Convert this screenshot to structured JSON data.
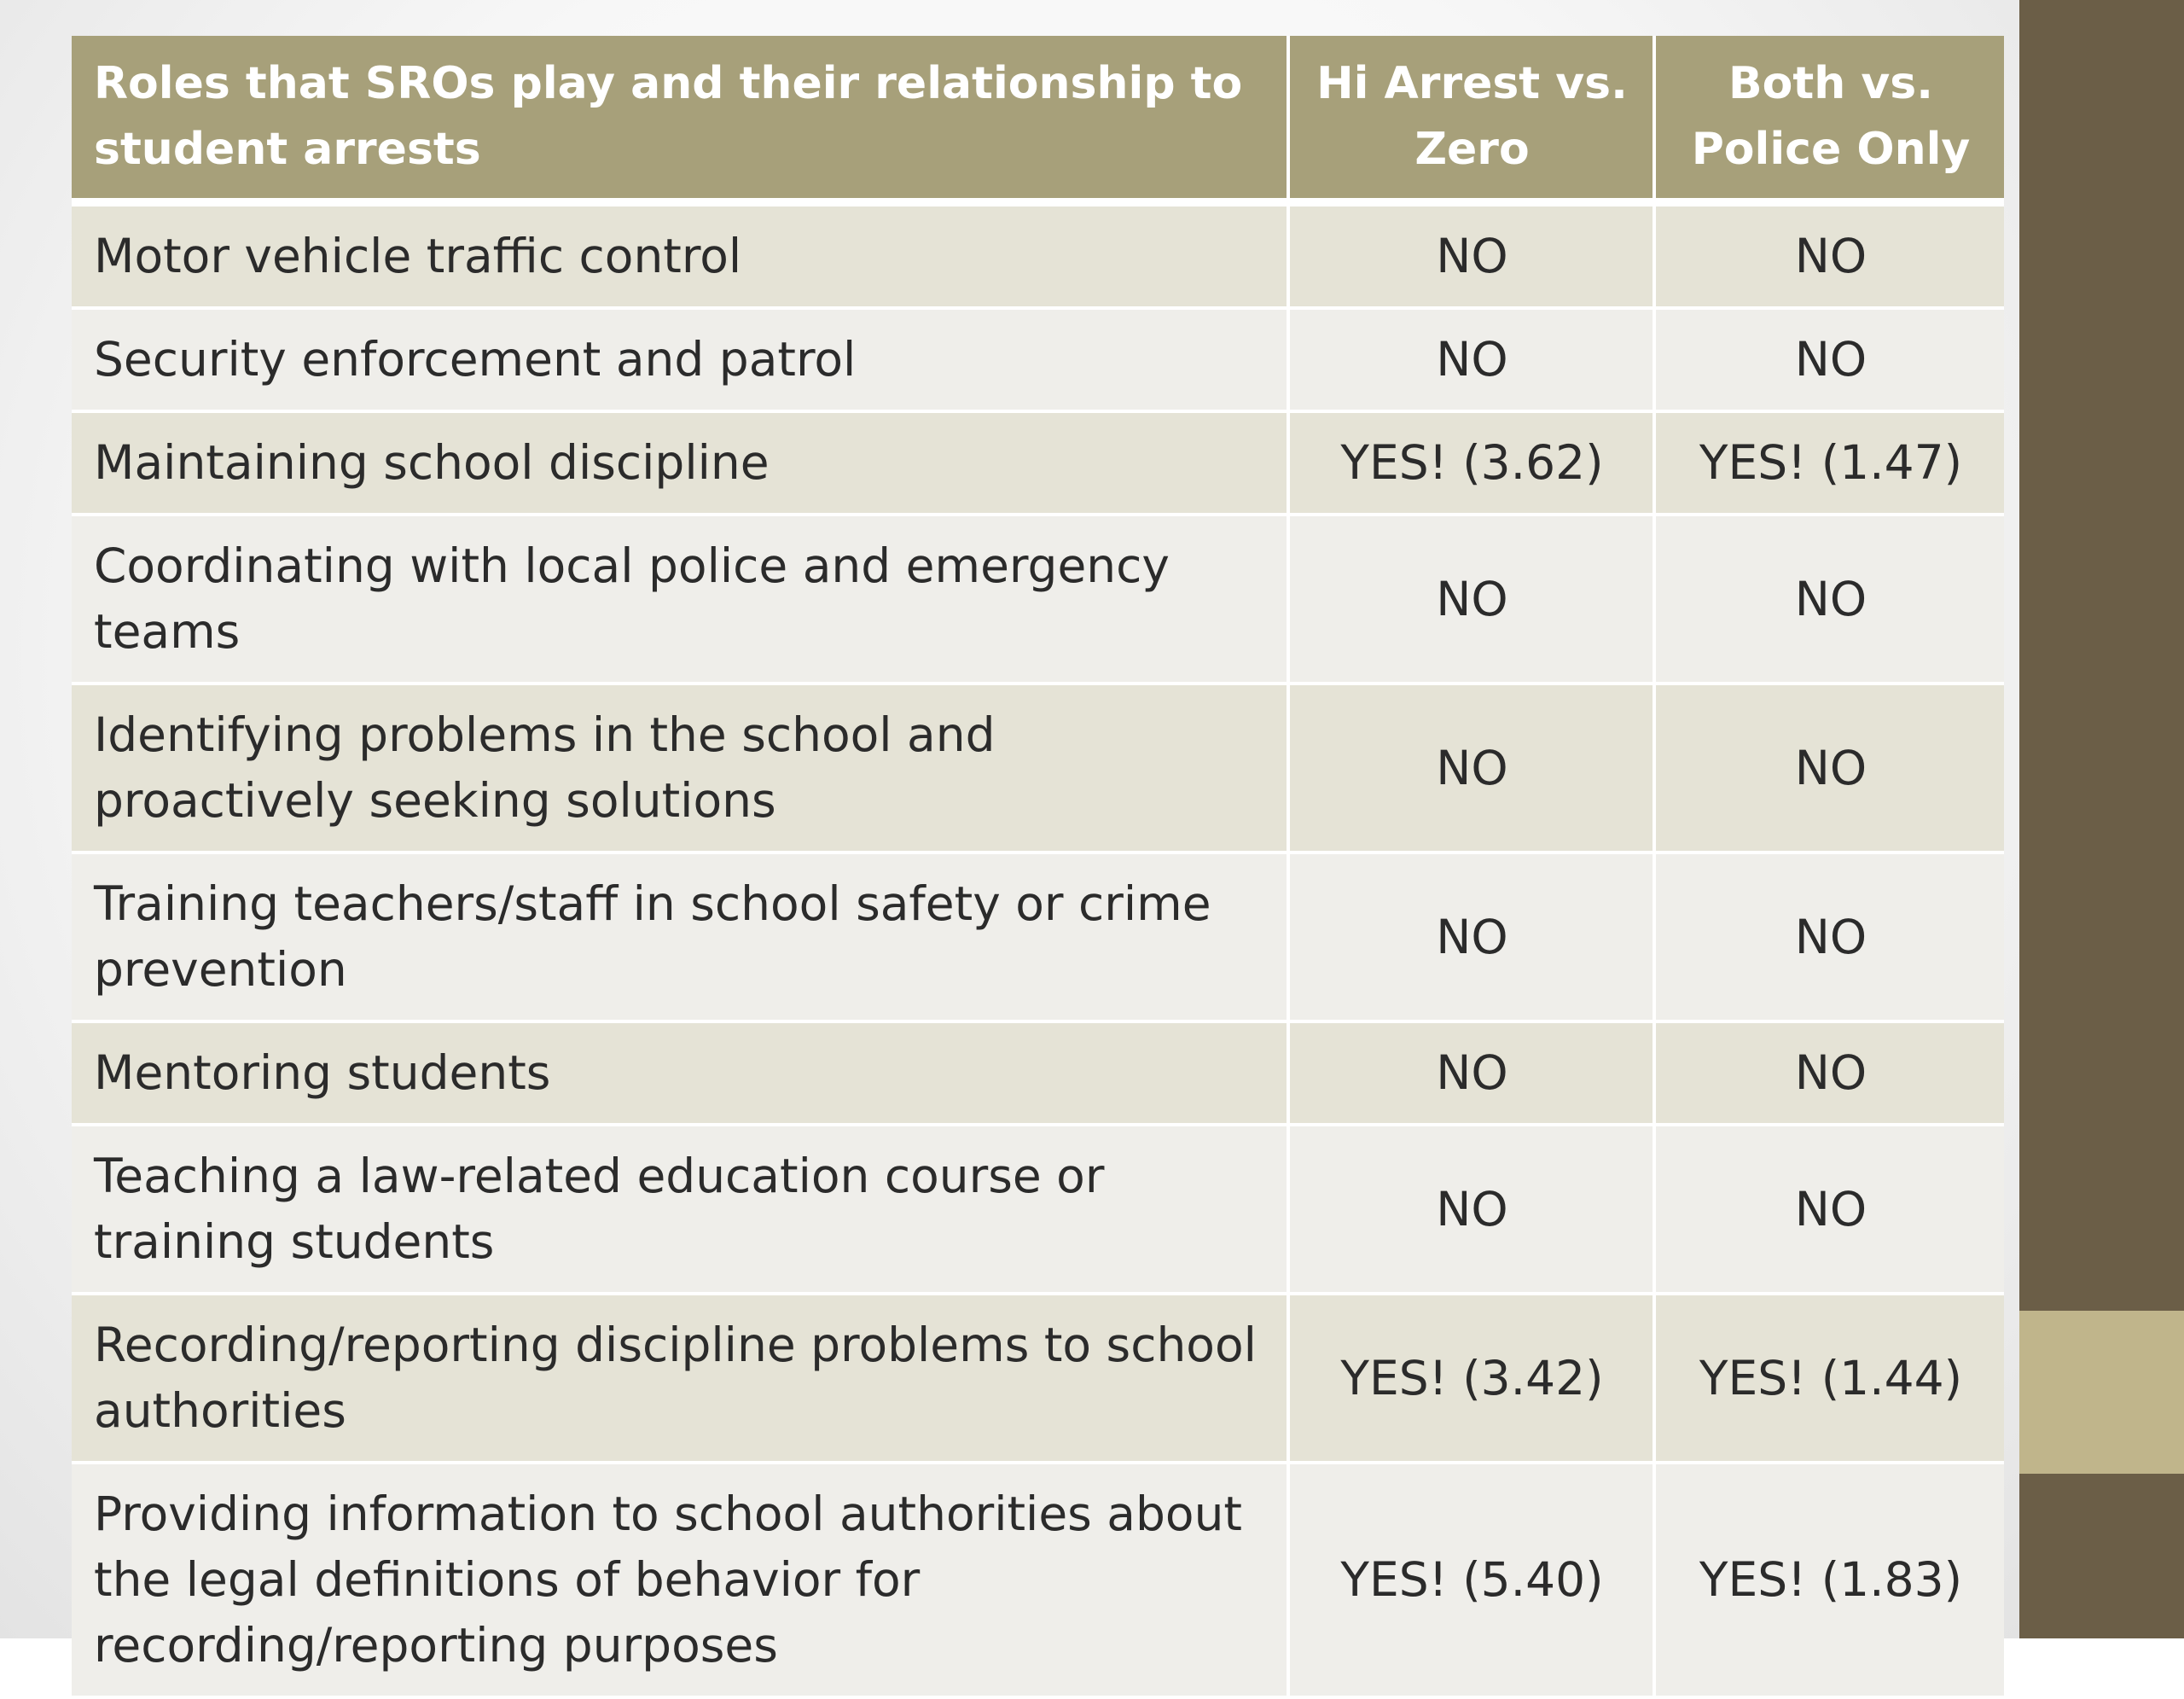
{
  "table": {
    "headers": [
      "Roles that SROs play and their relationship to student arrests",
      "Hi Arrest vs. Zero",
      "Both vs. Police Only"
    ],
    "rows": [
      {
        "role": "Motor vehicle traffic control",
        "hi_arrest_vs_zero": "NO",
        "both_vs_police_only": "NO"
      },
      {
        "role": "Security enforcement and patrol",
        "hi_arrest_vs_zero": "NO",
        "both_vs_police_only": "NO"
      },
      {
        "role": "Maintaining school discipline",
        "hi_arrest_vs_zero": "YES! (3.62)",
        "both_vs_police_only": "YES! (1.47)"
      },
      {
        "role": "Coordinating with local police and emergency teams",
        "hi_arrest_vs_zero": "NO",
        "both_vs_police_only": "NO"
      },
      {
        "role": "Identifying problems in the school and proactively seeking solutions",
        "hi_arrest_vs_zero": "NO",
        "both_vs_police_only": "NO"
      },
      {
        "role": "Training teachers/staff in school safety or crime prevention",
        "hi_arrest_vs_zero": "NO",
        "both_vs_police_only": "NO"
      },
      {
        "role": "Mentoring students",
        "hi_arrest_vs_zero": "NO",
        "both_vs_police_only": "NO"
      },
      {
        "role": "Teaching a law-related education course or training students",
        "hi_arrest_vs_zero": "NO",
        "both_vs_police_only": "NO"
      },
      {
        "role": "Recording/reporting discipline problems to school authorities",
        "hi_arrest_vs_zero": "YES! (3.42)",
        "both_vs_police_only": "YES! (1.44)"
      },
      {
        "role": "Providing information to school authorities about the legal definitions of behavior for recording/reporting purposes",
        "hi_arrest_vs_zero": "YES! (5.40)",
        "both_vs_police_only": "YES! (1.83)"
      }
    ]
  },
  "colors": {
    "header_bg": "#a7a07a",
    "row_band_dark": "#e5e3d6",
    "row_band_light": "#efeeea",
    "side_band": "#6b5e47",
    "side_accent": "#c0b58b"
  }
}
